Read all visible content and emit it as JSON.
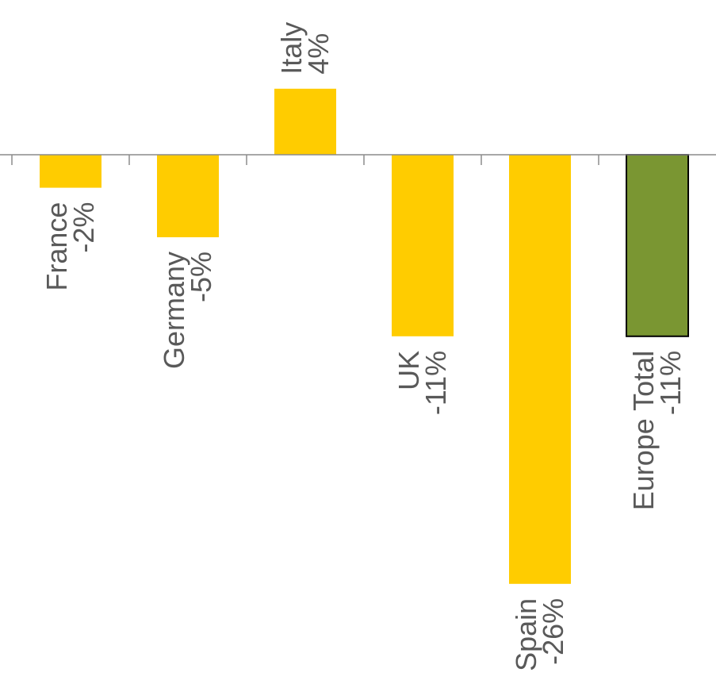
{
  "chart_data": {
    "type": "bar",
    "categories": [
      "France",
      "Germany",
      "Italy",
      "UK",
      "Spain",
      "Europe Total"
    ],
    "values": [
      -2,
      -5,
      4,
      -11,
      -26,
      -11
    ],
    "value_labels": [
      "-2%",
      "-5%",
      "4%",
      "-11%",
      "-26%",
      "-11%"
    ],
    "ylim": [
      -32,
      8.2
    ],
    "grid": false,
    "legend": "none",
    "colors": {
      "bar": "#FFCC00",
      "total_bar": "#7A9632",
      "total_bar_border": "#000000",
      "axis": "#8C8C8C",
      "label": "#595959"
    }
  }
}
